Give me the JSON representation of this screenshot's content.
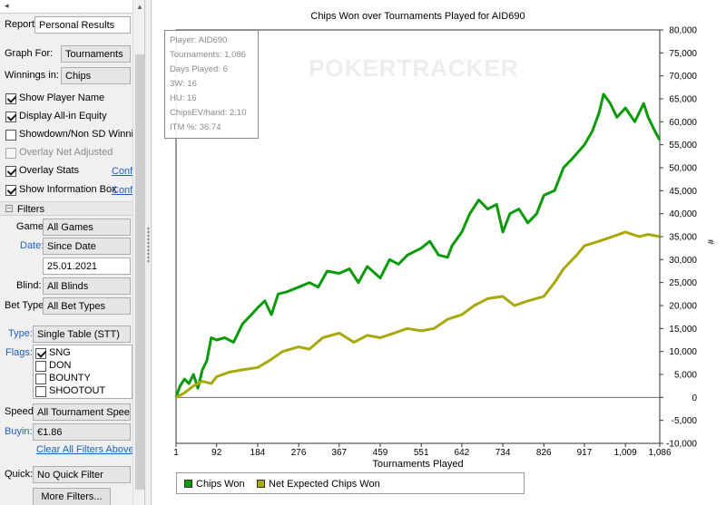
{
  "left_panel": {
    "report_label": "Report:",
    "report_value": "Personal Results",
    "graph_for_label": "Graph For:",
    "graph_for_value": "Tournaments",
    "winnings_in_label": "Winnings in:",
    "winnings_in_value": "Chips",
    "checkboxes": [
      {
        "label": "Show Player Name",
        "checked": true,
        "enabled": true
      },
      {
        "label": "Display All-in Equity",
        "checked": true,
        "enabled": true
      },
      {
        "label": "Showdown/Non SD Winnings",
        "checked": false,
        "enabled": true
      },
      {
        "label": "Overlay Net Adjusted",
        "checked": false,
        "enabled": false
      },
      {
        "label": "Overlay Stats",
        "checked": true,
        "enabled": true,
        "link": "Confi"
      },
      {
        "label": "Show Information Box",
        "checked": true,
        "enabled": true,
        "link": "Confi"
      }
    ],
    "filters_title": "Filters",
    "game_label": "Game:",
    "game_value": "All Games",
    "date_label": "Date:",
    "date_value": "Since Date",
    "date_input": "25.01.2021",
    "blind_label": "Blind:",
    "blind_value": "All Blinds",
    "bet_type_label": "Bet Type:",
    "bet_type_value": "All Bet Types",
    "type_label": "Type:",
    "type_value": "Single Table (STT)",
    "flags_label": "Flags:",
    "flags": [
      {
        "label": "SNG",
        "checked": true
      },
      {
        "label": "DON",
        "checked": false
      },
      {
        "label": "BOUNTY",
        "checked": false
      },
      {
        "label": "SHOOTOUT",
        "checked": false
      }
    ],
    "speed_label": "Speed:",
    "speed_value": "All Tournament Speeds",
    "buyin_label": "Buyin:",
    "buyin_value": "€1.86",
    "clear_filters": "Clear All Filters Above",
    "quick_label": "Quick:",
    "quick_value": "No Quick Filter",
    "more_filters": "More Filters..."
  },
  "stats_box": [
    "Player: AID690",
    "Tournaments: 1,086",
    "Days Played: 6",
    "3W: 16",
    "HU: 16",
    "ChipsEV/hand: 2.10",
    "ITM %: 36.74"
  ],
  "watermark": "POKERTRACKER",
  "colors": {
    "chips_won": "#0a9a0a",
    "net_expected": "#a8a80a",
    "link": "#1f5fbf"
  },
  "chart_data": {
    "type": "line",
    "title": "Chips Won over Tournaments Played for  AID690",
    "xlabel": "Tournaments Played",
    "ylabel": "#",
    "xlim": [
      1,
      1086
    ],
    "ylim": [
      -10000,
      80000
    ],
    "x_ticks": [
      "1",
      "92",
      "184",
      "276",
      "367",
      "459",
      "551",
      "642",
      "734",
      "826",
      "917",
      "1,009",
      "1,086"
    ],
    "x_tick_values": [
      1,
      92,
      184,
      276,
      367,
      459,
      551,
      642,
      734,
      826,
      917,
      1009,
      1086
    ],
    "y_ticks": [
      "-10,000",
      "-5,000",
      "0",
      "5,000",
      "10,000",
      "15,000",
      "20,000",
      "25,000",
      "30,000",
      "35,000",
      "40,000",
      "45,000",
      "50,000",
      "55,000",
      "60,000",
      "65,000",
      "70,000",
      "75,000",
      "80,000"
    ],
    "y_tick_values": [
      -10000,
      -5000,
      0,
      5000,
      10000,
      15000,
      20000,
      25000,
      30000,
      35000,
      40000,
      45000,
      50000,
      55000,
      60000,
      65000,
      70000,
      75000,
      80000
    ],
    "legend_position": "bottom-left",
    "series": [
      {
        "name": "Chips Won",
        "x": [
          1,
          10,
          20,
          30,
          40,
          50,
          60,
          70,
          80,
          92,
          110,
          130,
          150,
          170,
          184,
          200,
          215,
          230,
          250,
          276,
          300,
          320,
          340,
          367,
          390,
          410,
          430,
          459,
          480,
          500,
          520,
          551,
          570,
          590,
          610,
          620,
          642,
          660,
          680,
          700,
          720,
          734,
          750,
          770,
          790,
          810,
          826,
          850,
          870,
          890,
          917,
          935,
          950,
          960,
          975,
          990,
          1009,
          1030,
          1050,
          1060,
          1075,
          1086
        ],
        "values": [
          0,
          2500,
          4000,
          3000,
          5000,
          2000,
          6000,
          8000,
          13000,
          12500,
          13000,
          12000,
          16000,
          18000,
          19500,
          21000,
          18000,
          22500,
          23000,
          24000,
          25000,
          24000,
          27500,
          27000,
          28000,
          25000,
          28500,
          26000,
          30000,
          29000,
          31000,
          32500,
          34000,
          31000,
          30500,
          33000,
          36000,
          40000,
          43000,
          41000,
          42000,
          36000,
          40000,
          41000,
          38000,
          40000,
          44000,
          45000,
          50000,
          52000,
          55000,
          58000,
          62000,
          66000,
          64000,
          61000,
          63000,
          60000,
          64000,
          61000,
          58000,
          56000
        ]
      },
      {
        "name": "Net Expected Chips Won",
        "x": [
          1,
          20,
          40,
          60,
          80,
          92,
          120,
          150,
          184,
          210,
          240,
          276,
          300,
          330,
          367,
          400,
          430,
          459,
          490,
          520,
          551,
          580,
          610,
          642,
          670,
          700,
          734,
          760,
          790,
          826,
          850,
          870,
          900,
          917,
          950,
          980,
          1009,
          1040,
          1060,
          1086
        ],
        "values": [
          0,
          1000,
          2500,
          3500,
          3000,
          4500,
          5500,
          6000,
          6500,
          8000,
          10000,
          11000,
          10500,
          13000,
          14000,
          12000,
          13500,
          13000,
          14000,
          15000,
          14500,
          15000,
          17000,
          18000,
          20000,
          21500,
          22000,
          20000,
          21000,
          22000,
          25000,
          28000,
          31000,
          33000,
          34000,
          35000,
          36000,
          35000,
          35500,
          35000
        ]
      }
    ]
  }
}
